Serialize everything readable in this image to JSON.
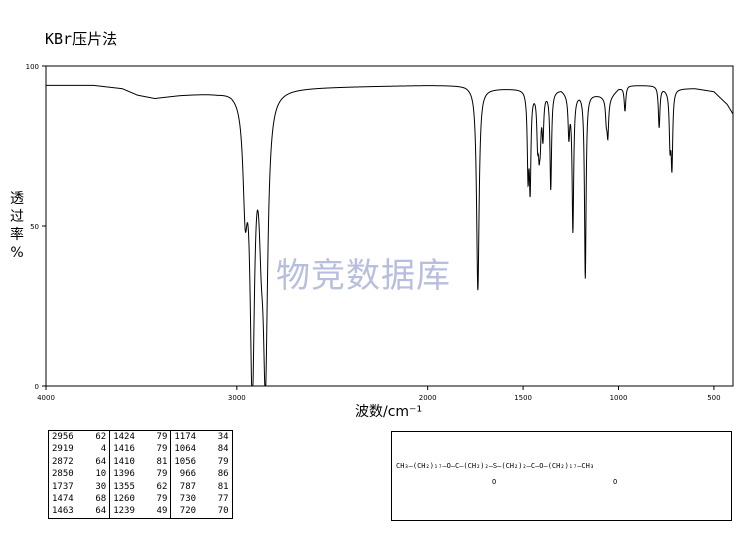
{
  "header": {
    "title": "KBr压片法"
  },
  "watermark": "物竞数据库",
  "chart_data": {
    "type": "line",
    "title": "KBr压片法",
    "xlabel": "波数/cm⁻¹",
    "ylabel_chars": [
      "透",
      "过",
      "率",
      "%"
    ],
    "xlim": [
      4000,
      400
    ],
    "ylim": [
      0,
      100
    ],
    "xticks": [
      4000,
      3000,
      2000,
      1500,
      1000,
      500
    ],
    "xtick_labels": [
      "4000",
      "3000",
      "2000",
      "1500",
      "1000",
      "500"
    ],
    "yticks": [
      0,
      50,
      100
    ],
    "ytick_labels": [
      "0",
      "50",
      "100"
    ],
    "grid": false,
    "baseline": [
      [
        4000,
        94
      ],
      [
        3750,
        94
      ],
      [
        3600,
        93
      ],
      [
        3520,
        91
      ],
      [
        3430,
        90
      ],
      [
        3300,
        91
      ],
      [
        3100,
        92
      ],
      [
        3030,
        93
      ],
      [
        3000,
        93
      ],
      [
        2000,
        94
      ],
      [
        1900,
        94
      ],
      [
        1800,
        94
      ],
      [
        1700,
        93
      ],
      [
        1600,
        93
      ],
      [
        1500,
        93
      ],
      [
        1400,
        92
      ],
      [
        1300,
        93
      ],
      [
        1250,
        91
      ],
      [
        1200,
        92
      ],
      [
        1100,
        91
      ],
      [
        1050,
        90
      ],
      [
        1000,
        93
      ],
      [
        950,
        94
      ],
      [
        900,
        94
      ],
      [
        800,
        94
      ],
      [
        750,
        93
      ],
      [
        700,
        93
      ],
      [
        600,
        93
      ],
      [
        500,
        92
      ],
      [
        430,
        88
      ],
      [
        400,
        85
      ]
    ],
    "peaks": [
      {
        "wavenumber": 2956,
        "transmittance": 62
      },
      {
        "wavenumber": 2919,
        "transmittance": 4
      },
      {
        "wavenumber": 2872,
        "transmittance": 64
      },
      {
        "wavenumber": 2850,
        "transmittance": 10
      },
      {
        "wavenumber": 1737,
        "transmittance": 30
      },
      {
        "wavenumber": 1474,
        "transmittance": 68
      },
      {
        "wavenumber": 1463,
        "transmittance": 64
      },
      {
        "wavenumber": 1424,
        "transmittance": 79
      },
      {
        "wavenumber": 1416,
        "transmittance": 79
      },
      {
        "wavenumber": 1410,
        "transmittance": 81
      },
      {
        "wavenumber": 1396,
        "transmittance": 79
      },
      {
        "wavenumber": 1355,
        "transmittance": 62
      },
      {
        "wavenumber": 1260,
        "transmittance": 79
      },
      {
        "wavenumber": 1239,
        "transmittance": 49
      },
      {
        "wavenumber": 1174,
        "transmittance": 34
      },
      {
        "wavenumber": 1064,
        "transmittance": 84
      },
      {
        "wavenumber": 1056,
        "transmittance": 79
      },
      {
        "wavenumber": 966,
        "transmittance": 86
      },
      {
        "wavenumber": 787,
        "transmittance": 81
      },
      {
        "wavenumber": 730,
        "transmittance": 77
      },
      {
        "wavenumber": 720,
        "transmittance": 70
      }
    ]
  },
  "peak_table": {
    "rows": [
      [
        "2956",
        "62",
        "1424",
        "79",
        "1174",
        "34"
      ],
      [
        "2919",
        "4",
        "1416",
        "79",
        "1064",
        "84"
      ],
      [
        "2872",
        "64",
        "1410",
        "81",
        "1056",
        "79"
      ],
      [
        "2850",
        "10",
        "1396",
        "79",
        "966",
        "86"
      ],
      [
        "1737",
        "30",
        "1355",
        "62",
        "787",
        "81"
      ],
      [
        "1474",
        "68",
        "1260",
        "79",
        "730",
        "77"
      ],
      [
        "1463",
        "64",
        "1239",
        "49",
        "720",
        "70"
      ]
    ]
  },
  "structure": {
    "formula": "CH₃—(CH₂)₁₇—O—C—(CH₂)₂—S—(CH₂)₂—C—O—(CH₂)₁₇—CH₃",
    "carbonyl_o": "O"
  },
  "colors": {
    "line": "#000000",
    "watermark": "#b8bedd"
  }
}
